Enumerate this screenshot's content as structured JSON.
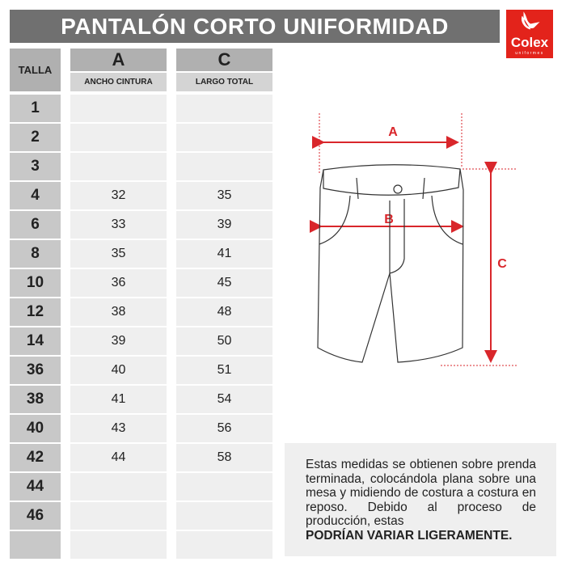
{
  "title": "PANTALÓN CORTO UNIFORMIDAD",
  "logo": {
    "name": "Colex",
    "subtitle": "uniformes",
    "color": "#e3231b"
  },
  "table": {
    "size_header": "TALLA",
    "columns": [
      {
        "letter": "A",
        "label": "ANCHO CINTURA"
      },
      {
        "letter": "C",
        "label": "LARGO TOTAL"
      }
    ],
    "rows": [
      {
        "size": "1",
        "a": "",
        "c": ""
      },
      {
        "size": "2",
        "a": "",
        "c": ""
      },
      {
        "size": "3",
        "a": "",
        "c": ""
      },
      {
        "size": "4",
        "a": "32",
        "c": "35"
      },
      {
        "size": "6",
        "a": "33",
        "c": "39"
      },
      {
        "size": "8",
        "a": "35",
        "c": "41"
      },
      {
        "size": "10",
        "a": "36",
        "c": "45"
      },
      {
        "size": "12",
        "a": "38",
        "c": "48"
      },
      {
        "size": "14",
        "a": "39",
        "c": "50"
      },
      {
        "size": "36",
        "a": "40",
        "c": "51"
      },
      {
        "size": "38",
        "a": "41",
        "c": "54"
      },
      {
        "size": "40",
        "a": "43",
        "c": "56"
      },
      {
        "size": "42",
        "a": "44",
        "c": "58"
      },
      {
        "size": "44",
        "a": "",
        "c": ""
      },
      {
        "size": "46",
        "a": "",
        "c": ""
      },
      {
        "size": "",
        "a": "",
        "c": ""
      }
    ]
  },
  "diagram": {
    "labels": {
      "a": "A",
      "b": "B",
      "c": "C"
    },
    "arrow_color": "#d9262b"
  },
  "note": {
    "text": "Estas medidas se obtienen sobre prenda terminada, colocándola plana sobre una mesa y midiendo de costura a costura en reposo. Debido al proceso de producción, estas",
    "bold": "PODRÍAN VARIAR LIGERAMENTE."
  }
}
